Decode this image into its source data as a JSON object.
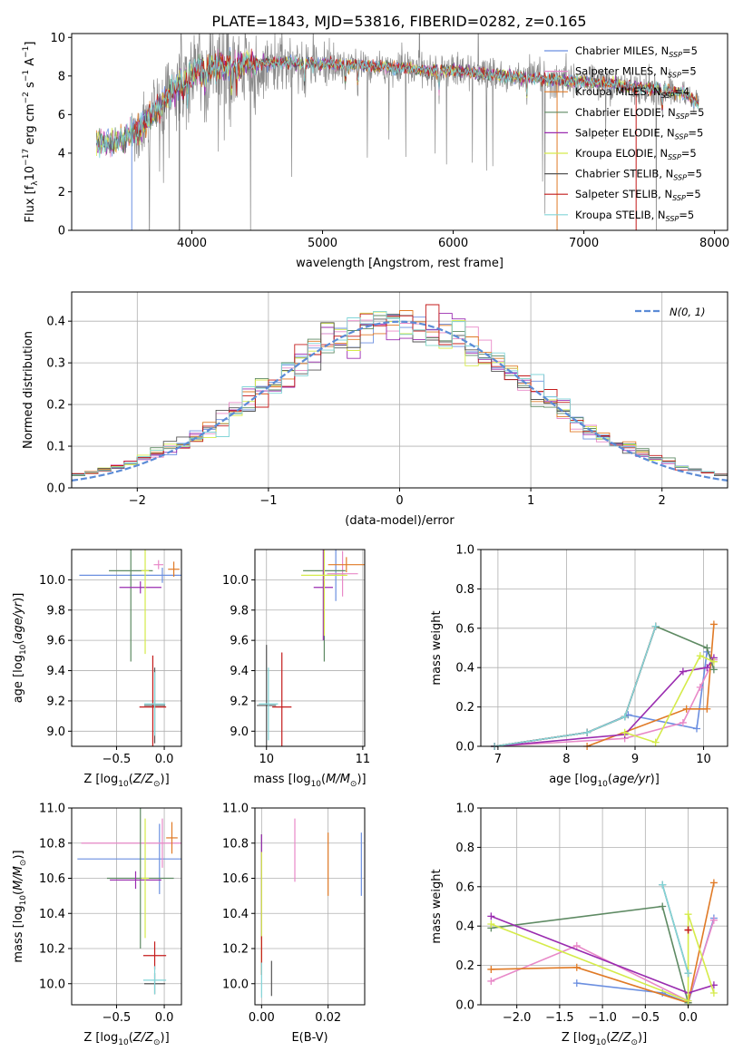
{
  "figure": {
    "title": "PLATE=1843, MJD=53816, FIBERID=0282, z=0.165"
  },
  "models": [
    {
      "name": "Chabrier MILES",
      "nssp": "5",
      "color": "#6b8fe0"
    },
    {
      "name": "Salpeter MILES",
      "nssp": "5",
      "color": "#e889c8"
    },
    {
      "name": "Kroupa MILES",
      "nssp": "4",
      "color": "#e07a26"
    },
    {
      "name": "Chabrier ELODIE",
      "nssp": "5",
      "color": "#5e8a63"
    },
    {
      "name": "Salpeter ELODIE",
      "nssp": "5",
      "color": "#9a2cb0"
    },
    {
      "name": "Kroupa ELODIE",
      "nssp": "5",
      "color": "#d5eb4a"
    },
    {
      "name": "Chabrier STELIB",
      "nssp": "5",
      "color": "#555555"
    },
    {
      "name": "Salpeter STELIB",
      "nssp": "5",
      "color": "#c41b1b"
    },
    {
      "name": "Kroupa STELIB",
      "nssp": "5",
      "color": "#82d5d8"
    }
  ],
  "chart_data": [
    {
      "id": "spectrum",
      "type": "line",
      "xlabel": "wavelength [Angstrom, rest frame]",
      "ylabel": "Flux [f",
      "xlim": [
        3080,
        8100
      ],
      "ylim": [
        0,
        10.2
      ],
      "xticks": [
        4000,
        5000,
        6000,
        7000,
        8000
      ],
      "yticks": [
        0,
        2,
        4,
        6,
        8,
        10
      ],
      "data_color": "#888888",
      "continuum_x": [
        3270,
        3350,
        3450,
        3550,
        3650,
        3750,
        3850,
        3950,
        4050,
        4200,
        4400,
        4600,
        4800,
        5000,
        5200,
        5400,
        5600,
        5800,
        6000,
        6200,
        6400,
        6600,
        6800,
        7000,
        7200,
        7400,
        7600,
        7800,
        7880
      ],
      "continuum_y": [
        4.6,
        4.5,
        4.6,
        5.0,
        5.6,
        6.3,
        7.2,
        7.9,
        8.3,
        8.5,
        8.6,
        8.7,
        8.7,
        8.6,
        8.6,
        8.5,
        8.4,
        8.3,
        8.3,
        8.1,
        8.0,
        7.9,
        7.8,
        7.7,
        7.6,
        7.4,
        7.3,
        7.0,
        6.5
      ],
      "absorption_lines": [
        3934,
        3968,
        4102,
        4304,
        4341,
        4861,
        5175,
        5270,
        5892,
        6563,
        7600
      ]
    },
    {
      "id": "residuals",
      "type": "histogram",
      "xlabel": "(data-model)/error",
      "ylabel": "Normed distribution",
      "xlim": [
        -2.5,
        2.5
      ],
      "ylim": [
        0,
        0.47
      ],
      "xticks": [
        -2,
        -1,
        0,
        1,
        2
      ],
      "yticks": [
        0,
        0.1,
        0.2,
        0.3,
        0.4
      ],
      "bin_width": 0.1,
      "normal_label": "N(0,1)",
      "normal_color": "#5b8bd6"
    },
    {
      "id": "age-vs-Z",
      "type": "errorbar",
      "xlabel": "Z [log10(Z/Z⊙)]",
      "ylabel": "age [log10(age/yr)]",
      "xlim": [
        -0.97,
        0.18
      ],
      "ylim": [
        8.9,
        10.2
      ],
      "xticks": [
        -0.5,
        0.0
      ],
      "yticks": [
        9.0,
        9.2,
        9.4,
        9.6,
        9.8,
        10.0
      ],
      "points": [
        {
          "model": 0,
          "x": -0.02,
          "y": 10.03,
          "xerr": 0.87,
          "yerr": 0.05
        },
        {
          "model": 1,
          "x": -0.06,
          "y": 10.1,
          "xerr": 0.05,
          "yerr": 0.03
        },
        {
          "model": 2,
          "x": 0.1,
          "y": 10.07,
          "xerr": 0.06,
          "yerr": 0.05
        },
        {
          "model": 3,
          "x": -0.35,
          "y": 10.06,
          "xerr": 0.23,
          "yerr": 0.6
        },
        {
          "model": 4,
          "x": -0.25,
          "y": 9.95,
          "xerr": 0.22,
          "yerr": 0.04
        },
        {
          "model": 5,
          "x": -0.2,
          "y": 10.06,
          "xerr": 0.04,
          "yerr": 0.55
        },
        {
          "model": 6,
          "x": -0.1,
          "y": 9.17,
          "xerr": 0.11,
          "yerr": 0.25
        },
        {
          "model": 7,
          "x": -0.12,
          "y": 9.16,
          "xerr": 0.14,
          "yerr": 0.34
        },
        {
          "model": 8,
          "x": -0.1,
          "y": 9.18,
          "xerr": 0.11,
          "yerr": 0.21
        }
      ]
    },
    {
      "id": "age-vs-mass",
      "type": "errorbar",
      "xlabel": "mass [log10(M/M⊙)]",
      "ylabel": "",
      "xlim": [
        9.88,
        11.02
      ],
      "ylim": [
        8.9,
        10.2
      ],
      "xticks": [
        10,
        11
      ],
      "yticks": [
        9.0,
        9.2,
        9.4,
        9.6,
        9.8,
        10.0
      ],
      "points": [
        {
          "model": 0,
          "x": 10.72,
          "y": 10.03,
          "xerr": 0.1,
          "yerr": 0.17
        },
        {
          "model": 1,
          "x": 10.79,
          "y": 10.04,
          "xerr": 0.16,
          "yerr": 0.15
        },
        {
          "model": 2,
          "x": 10.83,
          "y": 10.1,
          "xerr": 0.19,
          "yerr": 0.05
        },
        {
          "model": 3,
          "x": 10.6,
          "y": 10.06,
          "xerr": 0.22,
          "yerr": 0.6
        },
        {
          "model": 4,
          "x": 10.59,
          "y": 9.95,
          "xerr": 0.1,
          "yerr": 0.35
        },
        {
          "model": 5,
          "x": 10.6,
          "y": 10.03,
          "xerr": 0.24,
          "yerr": 0.4
        },
        {
          "model": 6,
          "x": 10.0,
          "y": 9.17,
          "xerr": 0.1,
          "yerr": 0.4
        },
        {
          "model": 7,
          "x": 10.16,
          "y": 9.16,
          "xerr": 0.1,
          "yerr": 0.36
        },
        {
          "model": 8,
          "x": 10.02,
          "y": 9.18,
          "xerr": 0.1,
          "yerr": 0.24
        }
      ]
    },
    {
      "id": "weight-vs-age",
      "type": "line",
      "xlabel": "age [log10(age/yr)]",
      "ylabel": "mass weight",
      "xlim": [
        6.75,
        10.35
      ],
      "ylim": [
        0,
        1.0
      ],
      "xticks": [
        7,
        8,
        9,
        10
      ],
      "yticks": [
        0.0,
        0.2,
        0.4,
        0.6,
        0.8,
        1.0
      ],
      "series": [
        {
          "model": 0,
          "x": [
            6.95,
            8.3,
            8.9,
            9.9,
            10.05,
            10.15
          ],
          "y": [
            0.0,
            0.07,
            0.16,
            0.09,
            0.48,
            0.44
          ]
        },
        {
          "model": 1,
          "x": [
            6.95,
            8.85,
            9.7,
            9.95,
            10.15
          ],
          "y": [
            0.0,
            0.04,
            0.12,
            0.3,
            0.44
          ]
        },
        {
          "model": 2,
          "x": [
            8.3,
            9.75,
            10.05,
            10.15
          ],
          "y": [
            0.0,
            0.19,
            0.19,
            0.62
          ]
        },
        {
          "model": 3,
          "x": [
            6.95,
            8.3,
            8.85,
            9.3,
            10.05,
            10.15
          ],
          "y": [
            0.0,
            0.07,
            0.15,
            0.61,
            0.5,
            0.39
          ]
        },
        {
          "model": 4,
          "x": [
            6.95,
            8.85,
            9.7,
            10.05,
            10.15
          ],
          "y": [
            0.0,
            0.06,
            0.38,
            0.4,
            0.45
          ]
        },
        {
          "model": 5,
          "x": [
            8.85,
            9.3,
            9.95,
            10.15
          ],
          "y": [
            0.07,
            0.02,
            0.46,
            0.43
          ]
        },
        {
          "model": 6,
          "x": [
            6.95,
            8.3,
            8.85,
            9.3
          ],
          "y": [
            0.0,
            0.07,
            0.15,
            0.61
          ]
        },
        {
          "model": 7,
          "x": [
            6.95,
            8.3,
            8.85,
            9.3
          ],
          "y": [
            0.0,
            0.07,
            0.15,
            0.61
          ]
        },
        {
          "model": 8,
          "x": [
            6.95,
            8.3,
            8.85,
            9.3
          ],
          "y": [
            0.0,
            0.07,
            0.15,
            0.61
          ]
        }
      ]
    },
    {
      "id": "mass-vs-Z",
      "type": "errorbar",
      "xlabel": "Z [log10(Z/Z⊙)]",
      "ylabel": "mass [log10(M/M⊙)]",
      "xlim": [
        -0.97,
        0.18
      ],
      "ylim": [
        9.88,
        11.0
      ],
      "xticks": [
        -0.5,
        0.0
      ],
      "yticks": [
        10.0,
        10.2,
        10.4,
        10.6,
        10.8,
        11.0
      ],
      "points": [
        {
          "model": 0,
          "x": -0.05,
          "y": 10.71,
          "xerr": 0.86,
          "yerr": 0.2
        },
        {
          "model": 1,
          "x": -0.02,
          "y": 10.8,
          "xerr": 0.85,
          "yerr": 0.14
        },
        {
          "model": 2,
          "x": 0.08,
          "y": 10.83,
          "xerr": 0.06,
          "yerr": 0.09
        },
        {
          "model": 3,
          "x": -0.25,
          "y": 10.6,
          "xerr": 0.35,
          "yerr": 0.4
        },
        {
          "model": 4,
          "x": -0.3,
          "y": 10.59,
          "xerr": 0.27,
          "yerr": 0.05
        },
        {
          "model": 5,
          "x": -0.2,
          "y": 10.6,
          "xerr": 0.04,
          "yerr": 0.34
        },
        {
          "model": 6,
          "x": -0.1,
          "y": 10.0,
          "xerr": 0.11,
          "yerr": 0.06
        },
        {
          "model": 7,
          "x": -0.1,
          "y": 10.16,
          "xerr": 0.12,
          "yerr": 0.08
        },
        {
          "model": 8,
          "x": -0.1,
          "y": 10.02,
          "xerr": 0.12,
          "yerr": 0.08
        }
      ]
    },
    {
      "id": "mass-vs-ebv",
      "type": "errorbar",
      "xlabel": "E(B-V)",
      "ylabel": "",
      "xlim": [
        -0.002,
        0.031
      ],
      "ylim": [
        9.88,
        11.0
      ],
      "xticks": [
        0.0,
        0.02
      ],
      "yticks": [
        10.0,
        10.2,
        10.4,
        10.6,
        10.8,
        11.0
      ],
      "points": [
        {
          "model": 0,
          "x": 0.03,
          "y": 10.68,
          "xerr": 0,
          "yerr": 0.18
        },
        {
          "model": 1,
          "x": 0.01,
          "y": 10.76,
          "xerr": 0,
          "yerr": 0.18
        },
        {
          "model": 2,
          "x": 0.02,
          "y": 10.68,
          "xerr": 0,
          "yerr": 0.18
        },
        {
          "model": 3,
          "x": 0.0,
          "y": 10.55,
          "xerr": 0,
          "yerr": 0.3
        },
        {
          "model": 4,
          "x": 0.0,
          "y": 10.55,
          "xerr": 0,
          "yerr": 0.3
        },
        {
          "model": 5,
          "x": 0.0,
          "y": 10.4,
          "xerr": 0,
          "yerr": 0.35
        },
        {
          "model": 6,
          "x": 0.003,
          "y": 10.03,
          "xerr": 0,
          "yerr": 0.1
        },
        {
          "model": 7,
          "x": 0.0,
          "y": 10.16,
          "xerr": 0,
          "yerr": 0.11
        },
        {
          "model": 8,
          "x": 0.0,
          "y": 10.02,
          "xerr": 0,
          "yerr": 0.1
        }
      ]
    },
    {
      "id": "weight-vs-Z",
      "type": "line",
      "xlabel": "Z [log10(Z/Z⊙)]",
      "ylabel": "mass weight",
      "xlim": [
        -2.42,
        0.46
      ],
      "ylim": [
        0,
        1.0
      ],
      "xticks": [
        -2.0,
        -1.5,
        -1.0,
        -0.5,
        0.0
      ],
      "yticks": [
        0.0,
        0.2,
        0.4,
        0.6,
        0.8,
        1.0
      ],
      "series": [
        {
          "model": 0,
          "x": [
            -1.3,
            -0.3,
            0.0,
            0.3
          ],
          "y": [
            0.11,
            0.06,
            0.01,
            0.44
          ]
        },
        {
          "model": 1,
          "x": [
            -2.3,
            -1.3,
            0.0,
            0.3
          ],
          "y": [
            0.12,
            0.3,
            0.02,
            0.43
          ]
        },
        {
          "model": 2,
          "x": [
            -2.3,
            -1.3,
            0.0,
            0.3
          ],
          "y": [
            0.18,
            0.19,
            0.01,
            0.62
          ]
        },
        {
          "model": 3,
          "x": [
            -2.3,
            -0.3,
            0.0
          ],
          "y": [
            0.39,
            0.5,
            0.01
          ]
        },
        {
          "model": 4,
          "x": [
            -2.3,
            0.0,
            0.3
          ],
          "y": [
            0.45,
            0.06,
            0.1
          ]
        },
        {
          "model": 5,
          "x": [
            -2.3,
            0.0,
            0.0,
            0.3
          ],
          "y": [
            0.41,
            0.02,
            0.46,
            0.06
          ]
        },
        {
          "model": 6,
          "x": [
            -0.3,
            0.0
          ],
          "y": [
            0.61,
            0.16
          ]
        },
        {
          "model": 7,
          "x": [
            0.0,
            0.0
          ],
          "y": [
            0.38,
            0.38
          ]
        },
        {
          "model": 8,
          "x": [
            -0.3,
            0.0
          ],
          "y": [
            0.61,
            0.16
          ]
        }
      ]
    }
  ]
}
